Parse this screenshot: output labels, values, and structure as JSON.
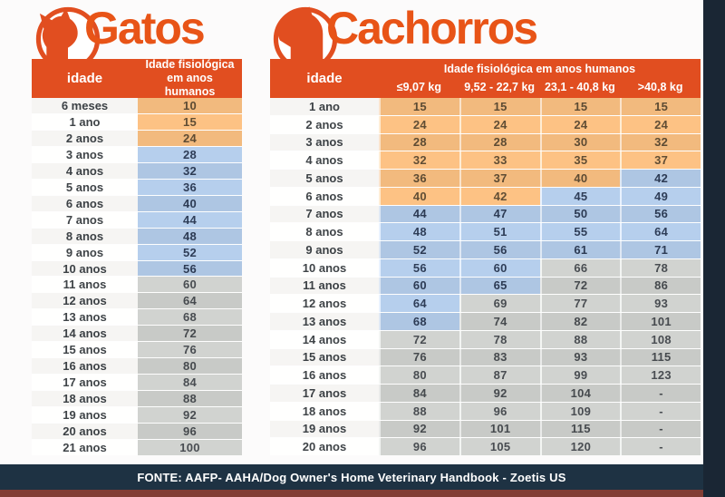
{
  "colors": {
    "page_bg": "#fcfbfb",
    "header_orange": "#e14e20",
    "title_orange": "#e85417",
    "cell_orange": "#f2ba7e",
    "cell_blue": "#aec6e3",
    "cell_gray": "#c8cac7",
    "label_bg": "#f6f5f3",
    "footer_bg": "#1e3243",
    "strip_maroon": "#823d34",
    "side_band": "#1a2634"
  },
  "gatos": {
    "title": "Gatos",
    "logo_icon": "cat-icon",
    "header": {
      "idade": "idade",
      "fisio": "Idade fisiológica em anos humanos"
    },
    "rows": [
      {
        "label": "6 meses",
        "value": "10",
        "band": "orange"
      },
      {
        "label": "1 ano",
        "value": "15",
        "band": "orange"
      },
      {
        "label": "2 anos",
        "value": "24",
        "band": "orange"
      },
      {
        "label": "3 anos",
        "value": "28",
        "band": "blue"
      },
      {
        "label": "4 anos",
        "value": "32",
        "band": "blue"
      },
      {
        "label": "5 anos",
        "value": "36",
        "band": "blue"
      },
      {
        "label": "6 anos",
        "value": "40",
        "band": "blue"
      },
      {
        "label": "7 anos",
        "value": "44",
        "band": "blue"
      },
      {
        "label": "8 anos",
        "value": "48",
        "band": "blue"
      },
      {
        "label": "9 anos",
        "value": "52",
        "band": "blue"
      },
      {
        "label": "10 anos",
        "value": "56",
        "band": "blue"
      },
      {
        "label": "11 anos",
        "value": "60",
        "band": "gray"
      },
      {
        "label": "12 anos",
        "value": "64",
        "band": "gray"
      },
      {
        "label": "13 anos",
        "value": "68",
        "band": "gray"
      },
      {
        "label": "14 anos",
        "value": "72",
        "band": "gray"
      },
      {
        "label": "15 anos",
        "value": "76",
        "band": "gray"
      },
      {
        "label": "16 anos",
        "value": "80",
        "band": "gray"
      },
      {
        "label": "17 anos",
        "value": "84",
        "band": "gray"
      },
      {
        "label": "18 anos",
        "value": "88",
        "band": "gray"
      },
      {
        "label": "19 anos",
        "value": "92",
        "band": "gray"
      },
      {
        "label": "20 anos",
        "value": "96",
        "band": "gray"
      },
      {
        "label": "21 anos",
        "value": "100",
        "band": "gray"
      }
    ]
  },
  "cachorros": {
    "title": "Cachorros",
    "logo_icon": "dog-icon",
    "header": {
      "idade": "idade",
      "span": "Idade fisiológica  em anos humanos",
      "cols": [
        "≤9,07 kg",
        "9,52 - 22,7 kg",
        "23,1 - 40,8 kg",
        ">40,8 kg"
      ]
    },
    "rows": [
      {
        "label": "1 ano",
        "values": [
          "15",
          "15",
          "15",
          "15"
        ],
        "bands": [
          "orange",
          "orange",
          "orange",
          "orange"
        ]
      },
      {
        "label": "2 anos",
        "values": [
          "24",
          "24",
          "24",
          "24"
        ],
        "bands": [
          "orange",
          "orange",
          "orange",
          "orange"
        ]
      },
      {
        "label": "3 anos",
        "values": [
          "28",
          "28",
          "30",
          "32"
        ],
        "bands": [
          "orange",
          "orange",
          "orange",
          "orange"
        ]
      },
      {
        "label": "4 anos",
        "values": [
          "32",
          "33",
          "35",
          "37"
        ],
        "bands": [
          "orange",
          "orange",
          "orange",
          "orange"
        ]
      },
      {
        "label": "5 anos",
        "values": [
          "36",
          "37",
          "40",
          "42"
        ],
        "bands": [
          "orange",
          "orange",
          "orange",
          "blue"
        ]
      },
      {
        "label": "6 anos",
        "values": [
          "40",
          "42",
          "45",
          "49"
        ],
        "bands": [
          "orange",
          "orange",
          "blue",
          "blue"
        ]
      },
      {
        "label": "7 anos",
        "values": [
          "44",
          "47",
          "50",
          "56"
        ],
        "bands": [
          "blue",
          "blue",
          "blue",
          "blue"
        ]
      },
      {
        "label": "8 anos",
        "values": [
          "48",
          "51",
          "55",
          "64"
        ],
        "bands": [
          "blue",
          "blue",
          "blue",
          "blue"
        ]
      },
      {
        "label": "9 anos",
        "values": [
          "52",
          "56",
          "61",
          "71"
        ],
        "bands": [
          "blue",
          "blue",
          "blue",
          "blue"
        ]
      },
      {
        "label": "10 anos",
        "values": [
          "56",
          "60",
          "66",
          "78"
        ],
        "bands": [
          "blue",
          "blue",
          "gray",
          "gray"
        ]
      },
      {
        "label": "11 anos",
        "values": [
          "60",
          "65",
          "72",
          "86"
        ],
        "bands": [
          "blue",
          "blue",
          "gray",
          "gray"
        ]
      },
      {
        "label": "12 anos",
        "values": [
          "64",
          "69",
          "77",
          "93"
        ],
        "bands": [
          "blue",
          "gray",
          "gray",
          "gray"
        ]
      },
      {
        "label": "13 anos",
        "values": [
          "68",
          "74",
          "82",
          "101"
        ],
        "bands": [
          "blue",
          "gray",
          "gray",
          "gray"
        ]
      },
      {
        "label": "14 anos",
        "values": [
          "72",
          "78",
          "88",
          "108"
        ],
        "bands": [
          "gray",
          "gray",
          "gray",
          "gray"
        ]
      },
      {
        "label": "15 anos",
        "values": [
          "76",
          "83",
          "93",
          "115"
        ],
        "bands": [
          "gray",
          "gray",
          "gray",
          "gray"
        ]
      },
      {
        "label": "16 anos",
        "values": [
          "80",
          "87",
          "99",
          "123"
        ],
        "bands": [
          "gray",
          "gray",
          "gray",
          "gray"
        ]
      },
      {
        "label": "17 anos",
        "values": [
          "84",
          "92",
          "104",
          "-"
        ],
        "bands": [
          "gray",
          "gray",
          "gray",
          "gray"
        ]
      },
      {
        "label": "18 anos",
        "values": [
          "88",
          "96",
          "109",
          "-"
        ],
        "bands": [
          "gray",
          "gray",
          "gray",
          "gray"
        ]
      },
      {
        "label": "19 anos",
        "values": [
          "92",
          "101",
          "115",
          "-"
        ],
        "bands": [
          "gray",
          "gray",
          "gray",
          "gray"
        ]
      },
      {
        "label": "20 anos",
        "values": [
          "96",
          "105",
          "120",
          "-"
        ],
        "bands": [
          "gray",
          "gray",
          "gray",
          "gray"
        ]
      }
    ]
  },
  "footer": {
    "text": "FONTE: AAFP- AAHA/Dog Owner's Home Veterinary Handbook - Zoetis US"
  },
  "chart_data": [
    {
      "type": "table",
      "title": "Gatos",
      "columns": [
        "idade",
        "Idade fisiológica em anos humanos"
      ],
      "rows": [
        [
          "6 meses",
          10
        ],
        [
          "1 ano",
          15
        ],
        [
          "2 anos",
          24
        ],
        [
          "3 anos",
          28
        ],
        [
          "4 anos",
          32
        ],
        [
          "5 anos",
          36
        ],
        [
          "6 anos",
          40
        ],
        [
          "7 anos",
          44
        ],
        [
          "8 anos",
          48
        ],
        [
          "9 anos",
          52
        ],
        [
          "10 anos",
          56
        ],
        [
          "11 anos",
          60
        ],
        [
          "12 anos",
          64
        ],
        [
          "13 anos",
          68
        ],
        [
          "14 anos",
          72
        ],
        [
          "15 anos",
          76
        ],
        [
          "16 anos",
          80
        ],
        [
          "17 anos",
          84
        ],
        [
          "18 anos",
          88
        ],
        [
          "19 anos",
          92
        ],
        [
          "20 anos",
          96
        ],
        [
          "21 anos",
          100
        ]
      ],
      "color_coding": {
        "orange": "kitten/junior",
        "blue": "adult/mature",
        "gray": "senior"
      }
    },
    {
      "type": "table",
      "title": "Cachorros",
      "columns": [
        "idade",
        "≤9,07 kg",
        "9,52 - 22,7 kg",
        "23,1 - 40,8 kg",
        ">40,8 kg"
      ],
      "rows": [
        [
          "1 ano",
          15,
          15,
          15,
          15
        ],
        [
          "2 anos",
          24,
          24,
          24,
          24
        ],
        [
          "3 anos",
          28,
          28,
          30,
          32
        ],
        [
          "4 anos",
          32,
          33,
          35,
          37
        ],
        [
          "5 anos",
          36,
          37,
          40,
          42
        ],
        [
          "6 anos",
          40,
          42,
          45,
          49
        ],
        [
          "7 anos",
          44,
          47,
          50,
          56
        ],
        [
          "8 anos",
          48,
          51,
          55,
          64
        ],
        [
          "9 anos",
          52,
          56,
          61,
          71
        ],
        [
          "10 anos",
          56,
          60,
          66,
          78
        ],
        [
          "11 anos",
          60,
          65,
          72,
          86
        ],
        [
          "12 anos",
          64,
          69,
          77,
          93
        ],
        [
          "13 anos",
          68,
          74,
          82,
          101
        ],
        [
          "14 anos",
          72,
          78,
          88,
          108
        ],
        [
          "15 anos",
          76,
          83,
          93,
          115
        ],
        [
          "16 anos",
          80,
          87,
          99,
          123
        ],
        [
          "17 anos",
          84,
          92,
          104,
          "-"
        ],
        [
          "18 anos",
          88,
          96,
          109,
          "-"
        ],
        [
          "19 anos",
          92,
          101,
          115,
          "-"
        ],
        [
          "20 anos",
          96,
          105,
          120,
          "-"
        ]
      ],
      "color_coding": {
        "orange": "puppy/junior",
        "blue": "adult/mature",
        "gray": "senior"
      }
    }
  ]
}
